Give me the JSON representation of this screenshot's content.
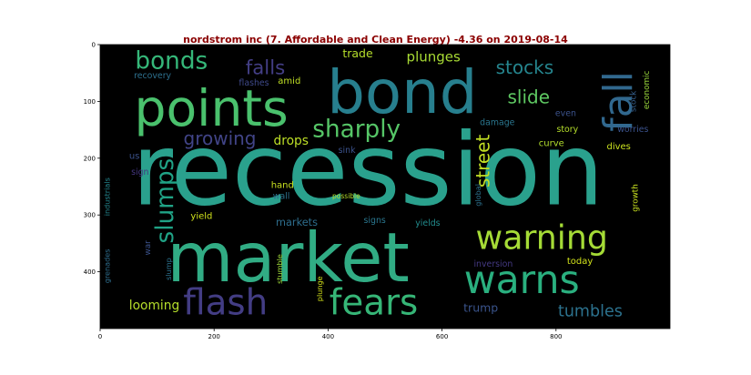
{
  "chart_data": {
    "type": "wordcloud",
    "title": "nordstrom inc (7. Affordable and Clean Energy) -4.36 on 2019-08-14",
    "background": "#000000",
    "xlim": [
      0,
      1000
    ],
    "ylim": [
      500,
      0
    ],
    "x_ticks": [
      "0",
      "200",
      "400",
      "600",
      "800"
    ],
    "y_ticks": [
      "0",
      "100",
      "200",
      "300",
      "400"
    ],
    "words": [
      {
        "text": "recession",
        "x": 470,
        "y": 220,
        "size": 175,
        "color": "#2aa18d",
        "rotate": 0
      },
      {
        "text": "market",
        "x": 330,
        "y": 375,
        "size": 120,
        "color": "#31ac84",
        "rotate": 0
      },
      {
        "text": "bond",
        "x": 530,
        "y": 85,
        "size": 105,
        "color": "#277f8e",
        "rotate": 0
      },
      {
        "text": "points",
        "x": 195,
        "y": 112,
        "size": 88,
        "color": "#4ac16d",
        "rotate": 0
      },
      {
        "text": "warns",
        "x": 740,
        "y": 415,
        "size": 68,
        "color": "#2ab07f",
        "rotate": 0
      },
      {
        "text": "flash",
        "x": 220,
        "y": 455,
        "size": 62,
        "color": "#433d84",
        "rotate": 0
      },
      {
        "text": "fears",
        "x": 480,
        "y": 455,
        "size": 62,
        "color": "#36b677",
        "rotate": 0
      },
      {
        "text": "warning",
        "x": 775,
        "y": 340,
        "size": 58,
        "color": "#a5db36",
        "rotate": 0
      },
      {
        "text": "fall",
        "x": 910,
        "y": 100,
        "size": 70,
        "color": "#31688e",
        "rotate": -90
      },
      {
        "text": "bonds",
        "x": 125,
        "y": 30,
        "size": 42,
        "color": "#35b779",
        "rotate": 0
      },
      {
        "text": "sharply",
        "x": 450,
        "y": 150,
        "size": 42,
        "color": "#56c667",
        "rotate": 0
      },
      {
        "text": "slumps",
        "x": 115,
        "y": 275,
        "size": 42,
        "color": "#20a386",
        "rotate": -90
      },
      {
        "text": "falls",
        "x": 290,
        "y": 42,
        "size": 34,
        "color": "#433e85",
        "rotate": 0
      },
      {
        "text": "growing",
        "x": 210,
        "y": 165,
        "size": 32,
        "color": "#414487",
        "rotate": 0
      },
      {
        "text": "stocks",
        "x": 745,
        "y": 40,
        "size": 32,
        "color": "#25858e",
        "rotate": 0
      },
      {
        "text": "slide",
        "x": 752,
        "y": 92,
        "size": 32,
        "color": "#5ec962",
        "rotate": 0
      },
      {
        "text": "street",
        "x": 672,
        "y": 205,
        "size": 32,
        "color": "#c2df23",
        "rotate": -90
      },
      {
        "text": "tumbles",
        "x": 860,
        "y": 470,
        "size": 28,
        "color": "#2c728e",
        "rotate": 0
      },
      {
        "text": "plunges",
        "x": 585,
        "y": 22,
        "size": 24,
        "color": "#a8db34",
        "rotate": 0
      },
      {
        "text": "trade",
        "x": 452,
        "y": 15,
        "size": 20,
        "color": "#b5de2b",
        "rotate": 0
      },
      {
        "text": "drops",
        "x": 335,
        "y": 170,
        "size": 22,
        "color": "#bddf26",
        "rotate": 0
      },
      {
        "text": "looming",
        "x": 95,
        "y": 460,
        "size": 22,
        "color": "#b5de2b",
        "rotate": 0
      },
      {
        "text": "markets",
        "x": 345,
        "y": 313,
        "size": 18,
        "color": "#2e6e8e",
        "rotate": 0
      },
      {
        "text": "trump",
        "x": 668,
        "y": 463,
        "size": 20,
        "color": "#3a548c",
        "rotate": 0
      },
      {
        "text": "dives",
        "x": 910,
        "y": 180,
        "size": 16,
        "color": "#cae11f",
        "rotate": 0
      },
      {
        "text": "yield",
        "x": 178,
        "y": 303,
        "size": 16,
        "color": "#d0e11c",
        "rotate": 0
      },
      {
        "text": "today",
        "x": 842,
        "y": 382,
        "size": 16,
        "color": "#d2e21b",
        "rotate": 0
      },
      {
        "text": "curve",
        "x": 792,
        "y": 175,
        "size": 16,
        "color": "#b2dd2d",
        "rotate": 0
      },
      {
        "text": "amid",
        "x": 332,
        "y": 65,
        "size": 16,
        "color": "#c0df25",
        "rotate": 0
      },
      {
        "text": "hand",
        "x": 320,
        "y": 248,
        "size": 16,
        "color": "#c8e020",
        "rotate": 0
      },
      {
        "text": "recovery",
        "x": 92,
        "y": 55,
        "size": 15,
        "color": "#2d708e",
        "rotate": 0
      },
      {
        "text": "flashes",
        "x": 270,
        "y": 68,
        "size": 15,
        "color": "#3e4989",
        "rotate": 0
      },
      {
        "text": "wall",
        "x": 318,
        "y": 268,
        "size": 15,
        "color": "#2c728e",
        "rotate": 0
      },
      {
        "text": "signs",
        "x": 482,
        "y": 310,
        "size": 15,
        "color": "#2a768e",
        "rotate": 0
      },
      {
        "text": "yields",
        "x": 575,
        "y": 315,
        "size": 15,
        "color": "#228c8d",
        "rotate": 0
      },
      {
        "text": "sink",
        "x": 433,
        "y": 187,
        "size": 15,
        "color": "#3b528b",
        "rotate": 0
      },
      {
        "text": "possible",
        "x": 432,
        "y": 267,
        "size": 12,
        "color": "#b5de2b",
        "rotate": 0
      },
      {
        "text": "damage",
        "x": 697,
        "y": 138,
        "size": 15,
        "color": "#2a768e",
        "rotate": 0
      },
      {
        "text": "story",
        "x": 820,
        "y": 150,
        "size": 15,
        "color": "#b5de2b",
        "rotate": 0
      },
      {
        "text": "even",
        "x": 817,
        "y": 122,
        "size": 15,
        "color": "#3b528b",
        "rotate": 0
      },
      {
        "text": "worries",
        "x": 935,
        "y": 150,
        "size": 15,
        "color": "#3b528b",
        "rotate": 0
      },
      {
        "text": "economic",
        "x": 960,
        "y": 80,
        "size": 14,
        "color": "#9bd93c",
        "rotate": -90
      },
      {
        "text": "stock",
        "x": 937,
        "y": 100,
        "size": 14,
        "color": "#355f8d",
        "rotate": -90
      },
      {
        "text": "growth",
        "x": 940,
        "y": 270,
        "size": 14,
        "color": "#c8e020",
        "rotate": -90
      },
      {
        "text": "inversion",
        "x": 690,
        "y": 387,
        "size": 15,
        "color": "#443983",
        "rotate": 0
      },
      {
        "text": "global",
        "x": 663,
        "y": 265,
        "size": 13,
        "color": "#2c728e",
        "rotate": -90
      },
      {
        "text": "industrials",
        "x": 12,
        "y": 268,
        "size": 13,
        "color": "#24868e",
        "rotate": -90
      },
      {
        "text": "grenades",
        "x": 12,
        "y": 390,
        "size": 13,
        "color": "#2e6e8e",
        "rotate": -90
      },
      {
        "text": "stumble",
        "x": 315,
        "y": 395,
        "size": 13,
        "color": "#a0da39",
        "rotate": -90
      },
      {
        "text": "plunge",
        "x": 385,
        "y": 430,
        "size": 13,
        "color": "#d4e21a",
        "rotate": -90
      },
      {
        "text": "slump",
        "x": 120,
        "y": 395,
        "size": 13,
        "color": "#2c728e",
        "rotate": -90
      },
      {
        "text": "war",
        "x": 85,
        "y": 358,
        "size": 14,
        "color": "#3b528b",
        "rotate": -90
      },
      {
        "text": "sign",
        "x": 70,
        "y": 225,
        "size": 15,
        "color": "#453781",
        "rotate": 0
      },
      {
        "text": "us",
        "x": 60,
        "y": 197,
        "size": 16,
        "color": "#3b528b",
        "rotate": 0
      }
    ]
  }
}
